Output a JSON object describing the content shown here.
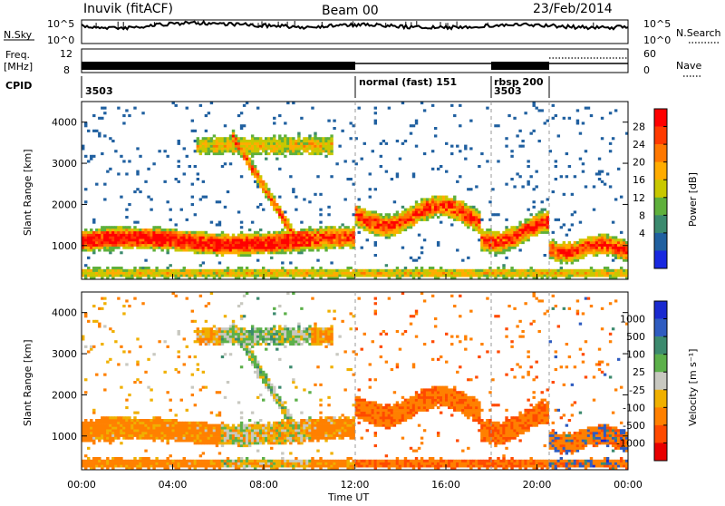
{
  "header": {
    "station": "Inuvik (fitACF)",
    "beam": "Beam 00",
    "date": "23/Feb/2014"
  },
  "panels": {
    "nsky_label": "N.Sky",
    "nsearch_label": "N.Search",
    "nsky_ticks": [
      "10^5",
      "10^0"
    ],
    "nsearch_ticks": [
      "10^5",
      "10^0"
    ],
    "freq_label_1": "Freq.",
    "freq_label_2": "[MHz]",
    "freq_ticks": [
      "12",
      "8"
    ],
    "nave_label": "Nave",
    "nave_ticks": [
      "60",
      "0"
    ],
    "cpid_label": "CPID",
    "cpid_segments": [
      {
        "label": "3503"
      },
      {
        "label": "normal (fast) 151"
      },
      {
        "label": "rbsp 200"
      },
      {
        "label": "3503"
      }
    ]
  },
  "chart_data": [
    {
      "type": "heatmap",
      "name": "power",
      "ylabel": "Slant Range [km]",
      "xlabel": "",
      "xlim": [
        0,
        24
      ],
      "ylim": [
        180,
        4500
      ],
      "y_ticks": [
        1000,
        2000,
        3000,
        4000
      ],
      "colorbar": {
        "label": "Power [dB]",
        "ticks": [
          "28",
          "24",
          "20",
          "16",
          "12",
          "8",
          "4"
        ],
        "colors": [
          "#ff0000",
          "#ff3a00",
          "#ff7800",
          "#ffac00",
          "#c8c800",
          "#5fb03c",
          "#3b8a6e",
          "#2060a0",
          "#1828e0"
        ]
      }
    },
    {
      "type": "heatmap",
      "name": "velocity",
      "ylabel": "Slant Range [km]",
      "xlabel": "Time UT",
      "xlim": [
        0,
        24
      ],
      "ylim": [
        180,
        4500
      ],
      "y_ticks": [
        1000,
        2000,
        3000,
        4000
      ],
      "x_ticks": [
        "00:00",
        "04:00",
        "08:00",
        "12:00",
        "16:00",
        "20:00",
        "00:00"
      ],
      "colorbar": {
        "label": "Velocity [m s⁻¹]",
        "ticks": [
          "1000",
          "500",
          "100",
          "25",
          "-25",
          "-100",
          "-500",
          "-1000"
        ],
        "colors": [
          "#1a2ad0",
          "#2f5cc0",
          "#3c8a6e",
          "#5cb04a",
          "#c8c8c0",
          "#f0b000",
          "#ff8000",
          "#ff4a00",
          "#e80000"
        ]
      }
    }
  ]
}
